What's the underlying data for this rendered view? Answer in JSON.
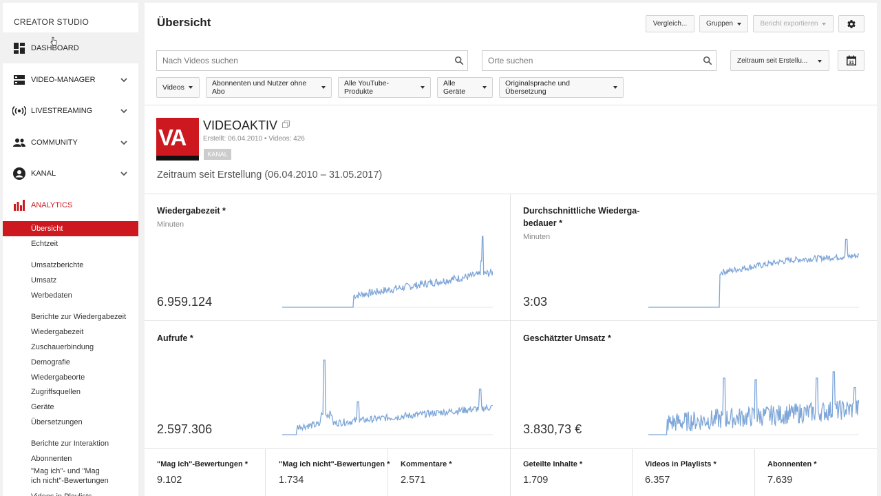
{
  "sidebar": {
    "title": "CREATOR STUDIO",
    "items": [
      {
        "label": "DASHBOARD",
        "icon": "dashboard-icon"
      },
      {
        "label": "VIDEO-MANAGER",
        "icon": "video-manager-icon"
      },
      {
        "label": "LIVESTREAMING",
        "icon": "livestream-icon"
      },
      {
        "label": "COMMUNITY",
        "icon": "community-icon"
      },
      {
        "label": "KANAL",
        "icon": "account-icon"
      },
      {
        "label": "ANALYTICS",
        "icon": "analytics-icon"
      }
    ],
    "sub_items": [
      "Übersicht",
      "Echtzeit",
      "Umsatzberichte",
      "Umsatz",
      "Werbedaten",
      "Berichte zur Wiedergabezeit",
      "Wiedergabezeit",
      "Zuschauerbindung",
      "Demografie",
      "Wiedergabeorte",
      "Zugriffsquellen",
      "Geräte",
      "Übersetzungen",
      "Berichte zur Interaktion",
      "Abonnenten",
      "\"Mag ich\"- und \"Mag ich nicht\"-Bewertungen",
      "Videos in Playlists"
    ]
  },
  "header": {
    "title": "Übersicht",
    "compare_label": "Vergleich...",
    "groups_label": "Gruppen",
    "export_label": "Bericht exportieren"
  },
  "search": {
    "videos_placeholder": "Nach Videos suchen",
    "places_placeholder": "Orte suchen",
    "period_label": "Zeitraum seit Erstellu...",
    "calendar_day": "31"
  },
  "filters": [
    "Videos",
    "Abonnenten und Nutzer ohne Abo",
    "Alle YouTube-Produkte",
    "Alle Geräte",
    "Originalsprache und Übersetzung"
  ],
  "channel": {
    "logo_text": "VA",
    "name": "VIDEOAKTIV",
    "meta": "Erstellt: 06.04.2010  •  Videos: 426",
    "badge": "KANAL",
    "period": "Zeitraum seit Erstellung (06.04.2010 – 31.05.2017)"
  },
  "metrics": [
    {
      "title": "Wiedergabezeit *",
      "unit": "Minuten",
      "value": "6.959.124"
    },
    {
      "title": "Durchschnittliche Wiederga-",
      "title2": "bedauer *",
      "unit": "Minuten",
      "value": "3:03"
    },
    {
      "title": "Aufrufe *",
      "value": "2.597.306"
    },
    {
      "title": "Geschätzter Umsatz *",
      "value": "3.830,73 €"
    }
  ],
  "small_metrics": [
    {
      "title": "\"Mag ich\"-Bewertungen *",
      "value": "9.102"
    },
    {
      "title": "\"Mag ich nicht\"-Bewertungen *",
      "value": "1.734"
    },
    {
      "title": "Kommentare *",
      "value": "2.571"
    },
    {
      "title": "Geteilte Inhalte *",
      "value": "1.709"
    },
    {
      "title": "Videos in Playlists *",
      "value": "6.357"
    },
    {
      "title": "Abonnenten *",
      "value": "7.639"
    }
  ],
  "colors": {
    "accent": "#cc181e",
    "spark_line": "#7ea6d8",
    "baseline": "#e6e6e6"
  }
}
